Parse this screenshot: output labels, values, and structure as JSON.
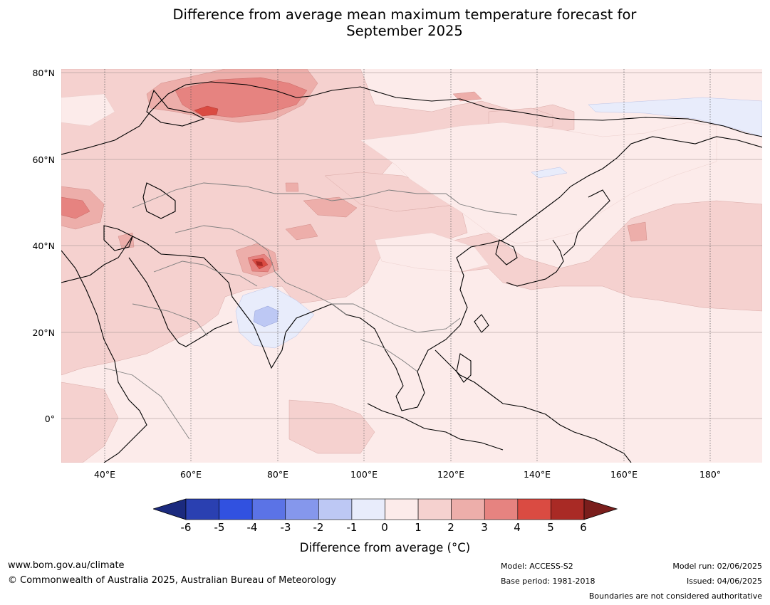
{
  "title_line1": "Difference from average mean maximum temperature forecast for",
  "title_line2": "September 2025",
  "map": {
    "lat_labels": [
      "80°N",
      "60°N",
      "40°N",
      "20°N",
      "0°"
    ],
    "lon_labels": [
      "40°E",
      "60°E",
      "80°E",
      "100°E",
      "120°E",
      "140°E",
      "160°E",
      "180°"
    ],
    "lat_range": [
      -10,
      81
    ],
    "lon_range": [
      30,
      192
    ],
    "projection": "plate-carree",
    "gridlines": true
  },
  "colorbar": {
    "ticks": [
      "-6",
      "-5",
      "-4",
      "-3",
      "-2",
      "-1",
      "0",
      "1",
      "2",
      "3",
      "4",
      "5",
      "6"
    ],
    "colors": [
      "#1b2a7e",
      "#2a40b1",
      "#3151e0",
      "#5b73e6",
      "#8597ec",
      "#bdc8f4",
      "#e8ecfb",
      "#fcebea",
      "#f5d1cf",
      "#edaeaa",
      "#e68380",
      "#da4b42",
      "#a92a25",
      "#7a1e1c"
    ],
    "label": "Difference from average (°C)",
    "extend": "both"
  },
  "footer": {
    "website": "www.bom.gov.au/climate",
    "copyright": "© Commonwealth of Australia 2025, Australian Bureau of Meteorology",
    "model": "Model: ACCESS-S2",
    "base_period": "Base period: 1981-2018",
    "model_run": "Model run: 02/06/2025",
    "issued": "Issued: 04/06/2025",
    "disclaimer": "Boundaries are not considered authoritative"
  }
}
